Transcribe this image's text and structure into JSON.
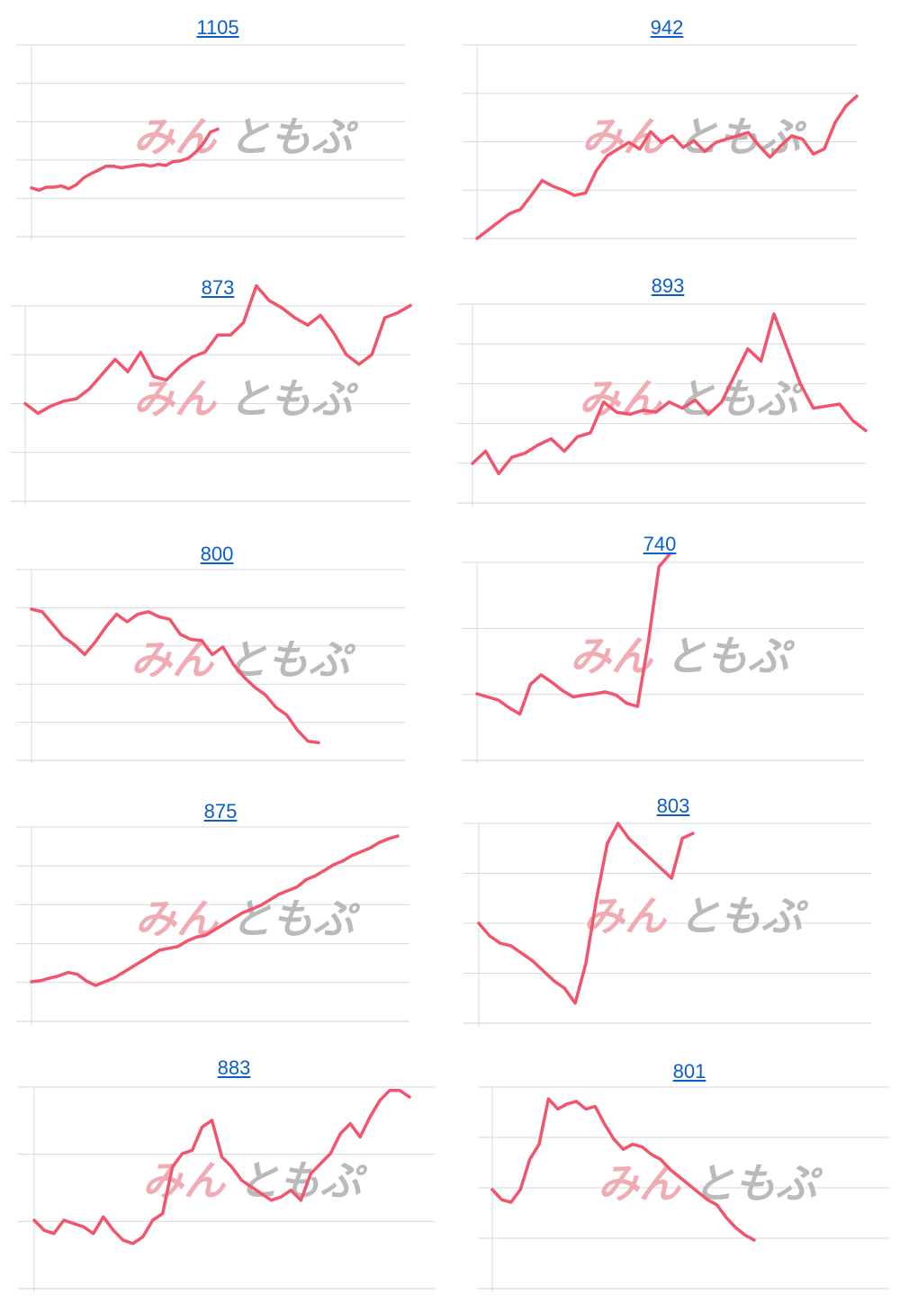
{
  "colors": {
    "line": "#f2546c",
    "grid": "#d9d9d9",
    "axis": "#cfcfcf",
    "link": "#0a5fcc",
    "watermark_red": "#ef9ea6",
    "watermark_gray": "#b3b3b3"
  },
  "watermark": {
    "part1": "みん",
    "part2": "ともぷ"
  },
  "chart_data": [
    {
      "type": "line",
      "title": "1105",
      "grid": true,
      "y_scale": "relative",
      "values": [
        0.26,
        0.2,
        0.28,
        0.28,
        0.31,
        0.24,
        0.34,
        0.52,
        0.63,
        0.72,
        0.82,
        0.82,
        0.78,
        0.81,
        0.84,
        0.86,
        0.82,
        0.87,
        0.84,
        0.94,
        0.96,
        1.02,
        1.18,
        1.39,
        1.7,
        1.78
      ]
    },
    {
      "type": "line",
      "title": "942",
      "grid": true,
      "y_scale": "relative",
      "values": [
        0.0,
        0.1,
        0.2,
        0.3,
        0.35,
        0.52,
        0.7,
        0.63,
        0.58,
        0.52,
        0.55,
        0.82,
        1.0,
        1.08,
        1.16,
        1.08,
        1.29,
        1.16,
        1.24,
        1.1,
        1.18,
        1.05,
        1.16,
        1.2,
        1.24,
        1.28,
        1.12,
        0.98,
        1.12,
        1.24,
        1.2,
        1.02,
        1.08,
        1.4,
        1.6,
        1.72
      ]
    },
    {
      "type": "line",
      "title": "873",
      "grid": true,
      "y_scale": "relative",
      "values": [
        1.0,
        0.8,
        0.95,
        1.05,
        1.1,
        1.3,
        1.6,
        1.9,
        1.65,
        2.05,
        1.55,
        1.48,
        1.75,
        1.95,
        2.05,
        2.4,
        2.4,
        2.65,
        3.4,
        3.1,
        2.95,
        2.75,
        2.6,
        2.8,
        2.45,
        2.0,
        1.8,
        2.0,
        2.75,
        2.85,
        3.0
      ]
    },
    {
      "type": "line",
      "title": "893",
      "grid": true,
      "y_scale": "relative",
      "values": [
        0.0,
        0.3,
        -0.25,
        0.15,
        0.25,
        0.45,
        0.6,
        0.3,
        0.65,
        0.75,
        1.5,
        1.25,
        1.2,
        1.3,
        1.25,
        1.5,
        1.35,
        1.55,
        1.2,
        1.5,
        2.15,
        2.8,
        2.5,
        3.65,
        2.8,
        1.95,
        1.35,
        1.4,
        1.45,
        1.05,
        0.8
      ]
    },
    {
      "type": "line",
      "title": "800",
      "grid": true,
      "y_scale": "relative",
      "values": [
        3.0,
        2.95,
        2.7,
        2.45,
        2.3,
        2.1,
        2.35,
        2.65,
        2.9,
        2.75,
        2.9,
        2.95,
        2.85,
        2.8,
        2.5,
        2.4,
        2.38,
        2.1,
        2.25,
        1.9,
        1.65,
        1.45,
        1.3,
        1.05,
        0.9,
        0.6,
        0.38,
        0.35
      ]
    },
    {
      "type": "line",
      "title": "740",
      "grid": true,
      "y_scale": "relative",
      "values": [
        0.0,
        -0.05,
        -0.1,
        -0.22,
        -0.32,
        0.15,
        0.3,
        0.18,
        0.05,
        -0.05,
        -0.02,
        0.0,
        0.03,
        -0.02,
        -0.15,
        -0.2,
        0.8,
        2.0,
        2.2
      ]
    },
    {
      "type": "line",
      "title": "875",
      "grid": true,
      "y_scale": "relative",
      "values": [
        0.0,
        0.03,
        0.1,
        0.16,
        0.25,
        0.2,
        0.02,
        -0.1,
        0.0,
        0.1,
        0.25,
        0.4,
        0.55,
        0.7,
        0.85,
        0.9,
        0.95,
        1.1,
        1.2,
        1.25,
        1.4,
        1.55,
        1.7,
        1.85,
        1.95,
        2.05,
        2.2,
        2.35,
        2.45,
        2.55,
        2.75,
        2.85,
        3.0,
        3.15,
        3.25,
        3.4,
        3.5,
        3.6,
        3.75,
        3.85,
        3.92
      ]
    },
    {
      "type": "line",
      "title": "803",
      "grid": true,
      "y_scale": "relative",
      "values": [
        0.0,
        -0.25,
        -0.4,
        -0.45,
        -0.6,
        -0.75,
        -0.95,
        -1.15,
        -1.3,
        -1.6,
        -0.8,
        0.5,
        1.6,
        2.0,
        1.7,
        1.5,
        1.3,
        1.1,
        0.9,
        1.7,
        1.8
      ]
    },
    {
      "type": "line",
      "title": "883",
      "grid": true,
      "y_scale": "relative",
      "values": [
        0.0,
        -0.15,
        -0.2,
        0.0,
        -0.05,
        -0.1,
        -0.2,
        0.05,
        -0.15,
        -0.3,
        -0.35,
        -0.25,
        0.0,
        0.1,
        0.8,
        1.0,
        1.05,
        1.4,
        1.5,
        0.95,
        0.8,
        0.6,
        0.5,
        0.4,
        0.3,
        0.35,
        0.45,
        0.3,
        0.7,
        0.85,
        1.0,
        1.3,
        1.45,
        1.25,
        1.55,
        1.8,
        1.95,
        1.95,
        1.85
      ]
    },
    {
      "type": "line",
      "title": "801",
      "grid": true,
      "y_scale": "relative",
      "values": [
        0.0,
        -0.2,
        -0.25,
        0.0,
        0.6,
        0.9,
        1.8,
        1.6,
        1.7,
        1.75,
        1.6,
        1.65,
        1.3,
        1.0,
        0.8,
        0.9,
        0.85,
        0.7,
        0.6,
        0.4,
        0.25,
        0.1,
        -0.05,
        -0.2,
        -0.3,
        -0.55,
        -0.75,
        -0.9,
        -1.0
      ]
    }
  ]
}
